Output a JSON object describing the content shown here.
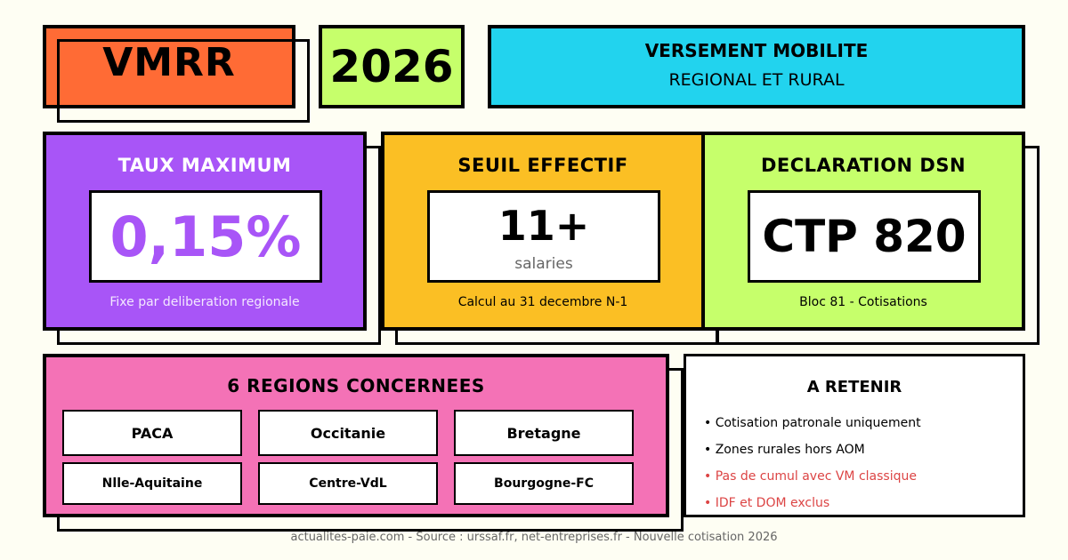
{
  "header": {
    "acronym": "VMRR",
    "year": "2026",
    "title_line1": "VERSEMENT MOBILITE",
    "title_line2": "REGIONAL ET RURAL"
  },
  "cards": [
    {
      "title": "TAUX MAXIMUM",
      "value": "0,15%",
      "caption": "Fixe par deliberation regionale",
      "color": "#a855f7"
    },
    {
      "title": "SEUIL EFFECTIF",
      "value": "11+",
      "unit": "salaries",
      "caption": "Calcul au 31 decembre N-1",
      "color": "#fbbf24"
    },
    {
      "title": "DECLARATION DSN",
      "value": "CTP 820",
      "caption": "Bloc 81 - Cotisations",
      "color": "#c6ff6b"
    }
  ],
  "regions": {
    "title": "6 REGIONS CONCERNEES",
    "items": [
      "PACA",
      "Occitanie",
      "Bretagne",
      "Nlle-Aquitaine",
      "Centre-VdL",
      "Bourgogne-FC"
    ],
    "color": "#f472b6"
  },
  "retenir": {
    "title": "A RETENIR",
    "items": [
      "• Cotisation patronale uniquement",
      "• Zones rurales hors AOM",
      "• Pas de cumul avec VM classique",
      "• IDF et DOM exclus"
    ],
    "warning_color": "#dc4444"
  },
  "footer": "actualites-paie.com - Source : urssaf.fr, net-entreprises.fr - Nouvelle cotisation 2026",
  "colors": {
    "background": "#fefef3",
    "orange": "#ff6b35",
    "lime": "#c6ff6b",
    "cyan": "#22d3ee"
  }
}
